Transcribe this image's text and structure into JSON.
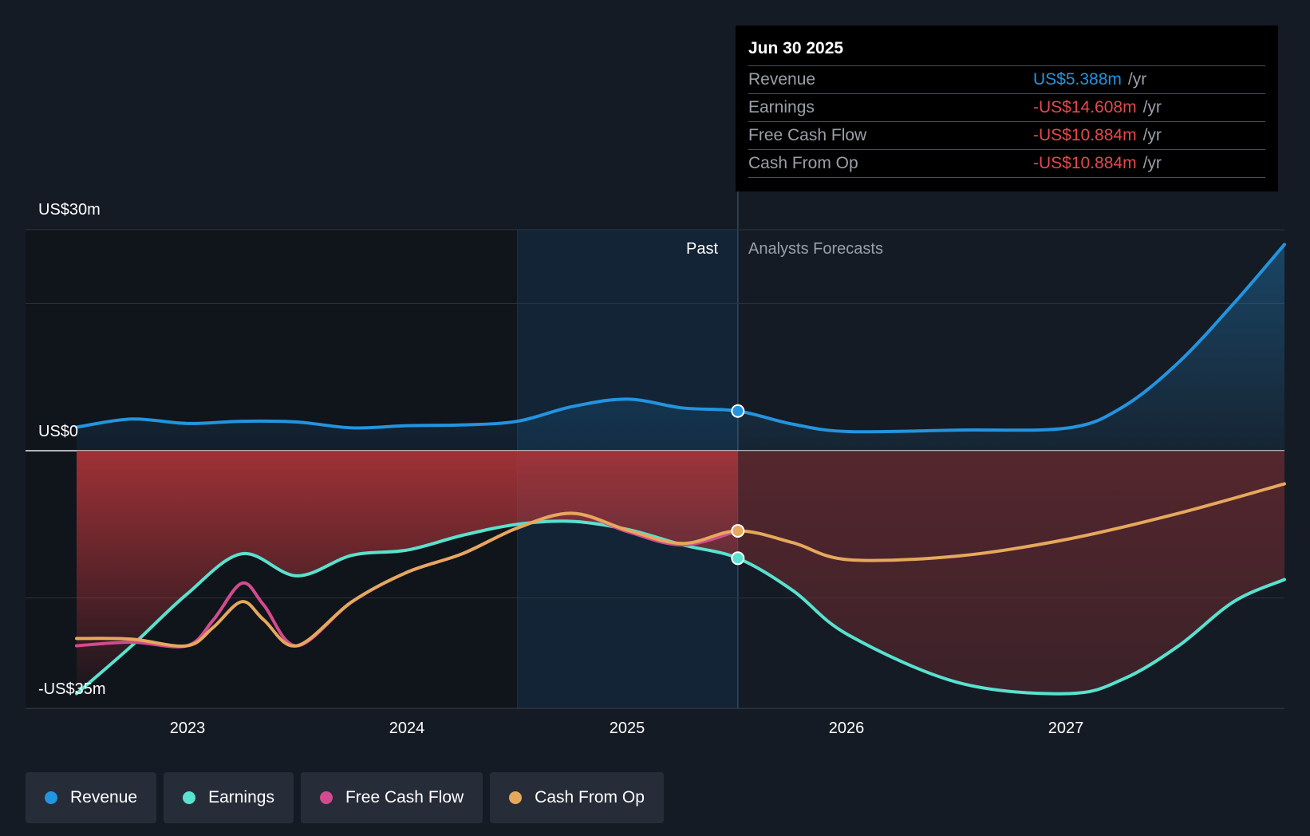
{
  "chart_data": {
    "type": "line",
    "y_axis": {
      "ticks": [
        {
          "value": 30,
          "label": "US$30m"
        },
        {
          "value": 0,
          "label": "US$0"
        },
        {
          "value": -35,
          "label": "-US$35m"
        }
      ],
      "ylim": [
        -35,
        30
      ],
      "grid": true
    },
    "x_axis": {
      "ticks": [
        "2023",
        "2024",
        "2025",
        "2026",
        "2027"
      ],
      "xlim": [
        2022.5,
        2027.98
      ]
    },
    "past_label": "Past",
    "forecast_label": "Analysts Forecasts",
    "divider_x": 2025.5,
    "highlight_start_x": 2024.5,
    "series": [
      {
        "name": "Revenue",
        "color": "#2394df",
        "x": [
          2022.5,
          2022.75,
          2023.0,
          2023.25,
          2023.5,
          2023.75,
          2024.0,
          2024.25,
          2024.5,
          2024.75,
          2025.0,
          2025.25,
          2025.5,
          2025.75,
          2026.0,
          2026.5,
          2027.0,
          2027.25,
          2027.5,
          2027.75,
          2027.98
        ],
        "y": [
          3.2,
          4.3,
          3.7,
          4.0,
          3.9,
          3.1,
          3.4,
          3.5,
          4.0,
          6.0,
          7.0,
          5.8,
          5.388,
          3.6,
          2.6,
          2.8,
          3.1,
          6.0,
          12.0,
          20.0,
          28.0
        ]
      },
      {
        "name": "Earnings",
        "color": "#58e2cf",
        "x": [
          2022.5,
          2022.75,
          2023.0,
          2023.25,
          2023.5,
          2023.75,
          2024.0,
          2024.25,
          2024.5,
          2024.75,
          2025.0,
          2025.25,
          2025.5,
          2025.75,
          2026.0,
          2026.5,
          2027.0,
          2027.25,
          2027.5,
          2027.75,
          2027.98
        ],
        "y": [
          -33.0,
          -26.5,
          -19.5,
          -14.0,
          -17.0,
          -14.2,
          -13.5,
          -11.5,
          -10.0,
          -9.6,
          -10.7,
          -12.8,
          -14.608,
          -19.0,
          -25.0,
          -31.5,
          -33.0,
          -31.0,
          -26.5,
          -20.5,
          -17.5
        ]
      },
      {
        "name": "Free Cash Flow",
        "color": "#d34b8f",
        "x": [
          2022.5,
          2022.75,
          2023.0,
          2023.12,
          2023.25,
          2023.35,
          2023.5,
          2023.75,
          2024.0,
          2024.25,
          2024.5,
          2024.75,
          2025.0,
          2025.25,
          2025.5
        ],
        "y": [
          -26.5,
          -26.0,
          -26.5,
          -23.0,
          -18.0,
          -21.0,
          -26.5,
          -20.5,
          -16.5,
          -14.0,
          -10.5,
          -8.5,
          -11.0,
          -12.8,
          -10.884
        ]
      },
      {
        "name": "Cash From Op",
        "color": "#e6a85c",
        "x": [
          2022.5,
          2022.75,
          2023.0,
          2023.12,
          2023.25,
          2023.35,
          2023.5,
          2023.75,
          2024.0,
          2024.25,
          2024.5,
          2024.75,
          2025.0,
          2025.25,
          2025.5,
          2025.75,
          2026.0,
          2026.5,
          2027.0,
          2027.5,
          2027.98
        ],
        "y": [
          -25.5,
          -25.6,
          -26.5,
          -24.0,
          -20.5,
          -23.0,
          -26.5,
          -20.5,
          -16.5,
          -14.0,
          -10.5,
          -8.5,
          -10.8,
          -12.6,
          -10.884,
          -12.5,
          -14.8,
          -14.3,
          -12.0,
          -8.5,
          -4.5
        ]
      }
    ],
    "tooltip": {
      "date": "Jun 30 2025",
      "rows": [
        {
          "label": "Revenue",
          "value": "US$5.388m",
          "unit": "/yr",
          "color": "#2394df"
        },
        {
          "label": "Earnings",
          "value": "-US$14.608m",
          "unit": "/yr",
          "color": "#e5484d"
        },
        {
          "label": "Free Cash Flow",
          "value": "-US$10.884m",
          "unit": "/yr",
          "color": "#e5484d"
        },
        {
          "label": "Cash From Op",
          "value": "-US$10.884m",
          "unit": "/yr",
          "color": "#e5484d"
        }
      ]
    },
    "legend": [
      {
        "label": "Revenue",
        "color": "#2394df"
      },
      {
        "label": "Earnings",
        "color": "#58e2cf"
      },
      {
        "label": "Free Cash Flow",
        "color": "#d34b8f"
      },
      {
        "label": "Cash From Op",
        "color": "#e6a85c"
      }
    ]
  }
}
